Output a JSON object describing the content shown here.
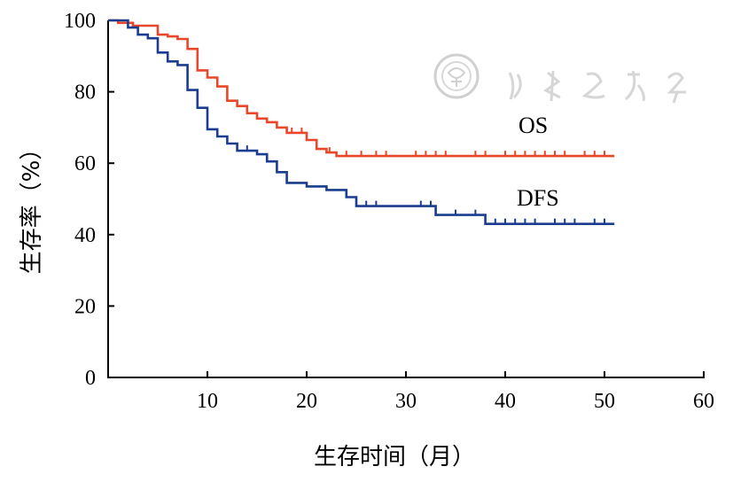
{
  "chart_data": {
    "type": "line",
    "step": true,
    "xlabel": "生存时间（月）",
    "ylabel": "生存率（%）",
    "xlim": [
      0,
      60
    ],
    "ylim": [
      0,
      100
    ],
    "xticks": [
      10,
      20,
      30,
      40,
      50,
      60
    ],
    "yticks": [
      0,
      20,
      40,
      60,
      80,
      100
    ],
    "grid": false,
    "legend": "inline labels",
    "series": [
      {
        "name": "OS",
        "color": "#e8472a",
        "points": [
          [
            0,
            100
          ],
          [
            1,
            100
          ],
          [
            1,
            99.3
          ],
          [
            2.5,
            99.3
          ],
          [
            2.5,
            98.5
          ],
          [
            5,
            98.5
          ],
          [
            5,
            96
          ],
          [
            6,
            96
          ],
          [
            6,
            95.5
          ],
          [
            7,
            95.5
          ],
          [
            7,
            94.8
          ],
          [
            8,
            94.8
          ],
          [
            8,
            92
          ],
          [
            9,
            92
          ],
          [
            9,
            86
          ],
          [
            10,
            86
          ],
          [
            10,
            84
          ],
          [
            11,
            84
          ],
          [
            11,
            81.5
          ],
          [
            12,
            81.5
          ],
          [
            12,
            77.5
          ],
          [
            13,
            77.5
          ],
          [
            13,
            76
          ],
          [
            14,
            76
          ],
          [
            14,
            74
          ],
          [
            15,
            74
          ],
          [
            15,
            72.5
          ],
          [
            16,
            72.5
          ],
          [
            16,
            71.5
          ],
          [
            17,
            71.5
          ],
          [
            17,
            70
          ],
          [
            18,
            70
          ],
          [
            18,
            68.5
          ],
          [
            20,
            68.5
          ],
          [
            20,
            66.5
          ],
          [
            21,
            66.5
          ],
          [
            21,
            64
          ],
          [
            22,
            64
          ],
          [
            22,
            63
          ],
          [
            23,
            63
          ],
          [
            23,
            62
          ],
          [
            51,
            62
          ]
        ],
        "censored": [
          18.5,
          19.5,
          22.3,
          24,
          25.5,
          27,
          28,
          31,
          32,
          33,
          34,
          37,
          38,
          40,
          41,
          42,
          43,
          44,
          45,
          46,
          48,
          49,
          50
        ]
      },
      {
        "name": "DFS",
        "color": "#1a3d8f",
        "points": [
          [
            0,
            100
          ],
          [
            2,
            100
          ],
          [
            2,
            98
          ],
          [
            3,
            98
          ],
          [
            3,
            96
          ],
          [
            4,
            96
          ],
          [
            4,
            95
          ],
          [
            5,
            95
          ],
          [
            5,
            91
          ],
          [
            6,
            91
          ],
          [
            6,
            88.5
          ],
          [
            7,
            88.5
          ],
          [
            7,
            87.5
          ],
          [
            8,
            87.5
          ],
          [
            8,
            80.5
          ],
          [
            9,
            80.5
          ],
          [
            9,
            75.5
          ],
          [
            10,
            75.5
          ],
          [
            10,
            69.5
          ],
          [
            11,
            69.5
          ],
          [
            11,
            67.5
          ],
          [
            12,
            67.5
          ],
          [
            12,
            65.5
          ],
          [
            13,
            65.5
          ],
          [
            13,
            63.5
          ],
          [
            15,
            63.5
          ],
          [
            15,
            62.5
          ],
          [
            16,
            62.5
          ],
          [
            16,
            60.5
          ],
          [
            17,
            60.5
          ],
          [
            17,
            57.5
          ],
          [
            18,
            57.5
          ],
          [
            18,
            54.5
          ],
          [
            20,
            54.5
          ],
          [
            20,
            53.5
          ],
          [
            22,
            53.5
          ],
          [
            22,
            52.5
          ],
          [
            24,
            52.5
          ],
          [
            24,
            50.5
          ],
          [
            25,
            50.5
          ],
          [
            25,
            48
          ],
          [
            33,
            48
          ],
          [
            33,
            45.5
          ],
          [
            38,
            45.5
          ],
          [
            38,
            43
          ],
          [
            51,
            43
          ]
        ],
        "censored": [
          14,
          26,
          27,
          31.5,
          32.5,
          35,
          37,
          39,
          40,
          41,
          42,
          43,
          45,
          46,
          47,
          49,
          50
        ]
      }
    ]
  }
}
